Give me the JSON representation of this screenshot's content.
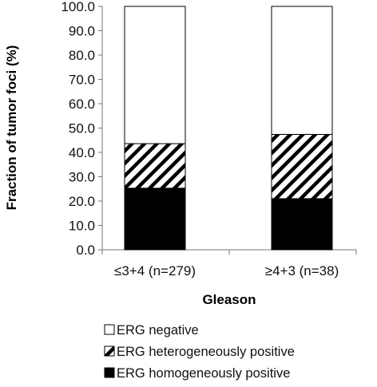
{
  "chart_data": {
    "type": "bar",
    "stacked": true,
    "title": "",
    "xlabel": "Gleason",
    "ylabel": "Fraction of tumor foci (%)",
    "ylim": [
      0,
      100
    ],
    "yticks": [
      "0.0",
      "10.0",
      "20.0",
      "30.0",
      "40.0",
      "50.0",
      "60.0",
      "70.0",
      "80.0",
      "90.0",
      "100.0"
    ],
    "categories": [
      "≤3+4 (n=279)",
      "≥4+3 (n=38)"
    ],
    "series": [
      {
        "name": "ERG homogeneously positive",
        "values": [
          25.3,
          21.0
        ],
        "color": "#000000",
        "fill": "solid"
      },
      {
        "name": "ERG heterogeneously positive",
        "values": [
          18.3,
          26.4
        ],
        "color": "#000000",
        "fill": "hatched"
      },
      {
        "name": "ERG negative",
        "values": [
          56.4,
          52.6
        ],
        "color": "#ffffff",
        "fill": "empty"
      }
    ],
    "legend_order": [
      "ERG negative",
      "ERG heterogeneously positive",
      "ERG homogeneously positive"
    ],
    "legend_position": "bottom-left",
    "grid": false
  }
}
